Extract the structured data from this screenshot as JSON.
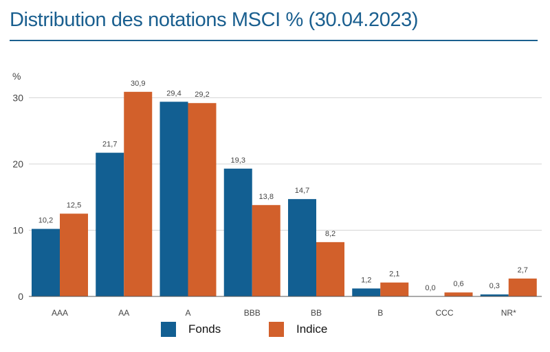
{
  "page": {
    "title": "Distribution des notations MSCI % (30.04.2023)"
  },
  "colors": {
    "title": "#1a5f8f",
    "fonds": "#125f92",
    "indice": "#d2602b",
    "grid": "#d5d5d5",
    "axis": "#555555",
    "label": "#444444"
  },
  "chart_data": {
    "type": "bar",
    "title": "",
    "xlabel": "",
    "ylabel": "%",
    "ylim": [
      0,
      33
    ],
    "yticks": [
      0,
      10,
      20,
      30
    ],
    "grid": true,
    "legend_position": "bottom",
    "categories": [
      "AAA",
      "AA",
      "A",
      "BBB",
      "BB",
      "B",
      "CCC",
      "NR*"
    ],
    "series": [
      {
        "name": "Fonds",
        "values": [
          10.2,
          21.7,
          29.4,
          19.3,
          14.7,
          1.2,
          0.0,
          0.3
        ],
        "labels": [
          "10,2",
          "21,7",
          "29,4",
          "19,3",
          "14,7",
          "1,2",
          "0,0",
          "0,3"
        ]
      },
      {
        "name": "Indice",
        "values": [
          12.5,
          30.9,
          29.2,
          13.8,
          8.2,
          2.1,
          0.6,
          2.7
        ],
        "labels": [
          "12,5",
          "30,9",
          "29,2",
          "13,8",
          "8,2",
          "2,1",
          "0,6",
          "2,7"
        ]
      }
    ]
  }
}
